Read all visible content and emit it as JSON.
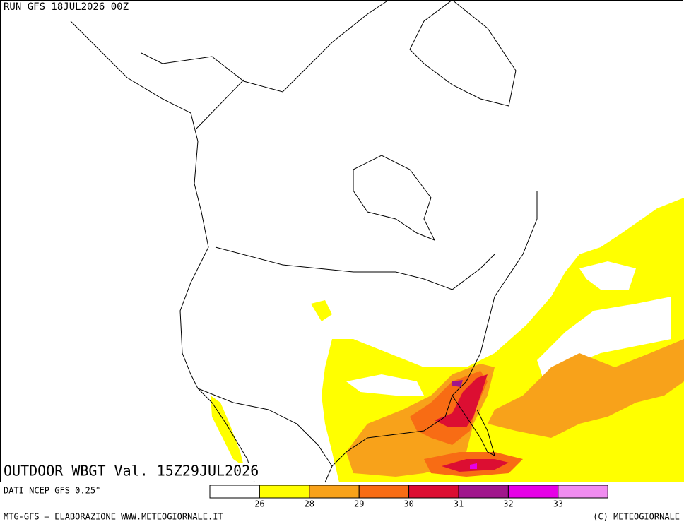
{
  "header": {
    "run": "RUN GFS 18JUL2026 00Z"
  },
  "map": {
    "caption": "OUTDOOR WBGT Val. 15Z29JUL2026"
  },
  "footer": {
    "source": "DATI NCEP GFS 0.25°",
    "credit": "MTG-GFS — ELABORAZIONE WWW.METEOGIORNALE.IT",
    "copyright": "(C) METEOGIORNALE"
  },
  "legend": {
    "colors": [
      "#ffffff",
      "#ffff00",
      "#f8a21a",
      "#f86c14",
      "#dc0e32",
      "#a0168c",
      "#e600e6",
      "#f08cf0"
    ],
    "labels": [
      26,
      28,
      29,
      30,
      31,
      32,
      33
    ]
  }
}
